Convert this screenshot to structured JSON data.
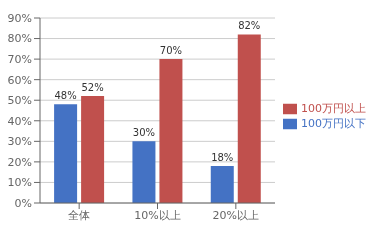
{
  "chart_data": {
    "type": "bar",
    "categories": [
      "全体",
      "10%以上",
      "20%以上"
    ],
    "series": [
      {
        "name": "100万円以下",
        "color": "#4472C4",
        "values": [
          0.48,
          0.3,
          0.18
        ],
        "value_labels": [
          "48%",
          "30%",
          "18%"
        ]
      },
      {
        "name": "100万円以上",
        "color": "#C0504D",
        "values": [
          0.52,
          0.7,
          0.82
        ],
        "value_labels": [
          "52%",
          "70%",
          "82%"
        ]
      }
    ],
    "ylim": [
      0,
      0.9
    ],
    "yticks": [
      {
        "value": 0.0,
        "label": "0%"
      },
      {
        "value": 0.1,
        "label": "10%"
      },
      {
        "value": 0.2,
        "label": "20%"
      },
      {
        "value": 0.3,
        "label": "30%"
      },
      {
        "value": 0.4,
        "label": "40%"
      },
      {
        "value": 0.5,
        "label": "50%"
      },
      {
        "value": 0.6,
        "label": "60%"
      },
      {
        "value": 0.7,
        "label": "70%"
      },
      {
        "value": 0.8,
        "label": "80%"
      },
      {
        "value": 0.9,
        "label": "90%"
      }
    ],
    "grid": true,
    "legend": "right"
  }
}
